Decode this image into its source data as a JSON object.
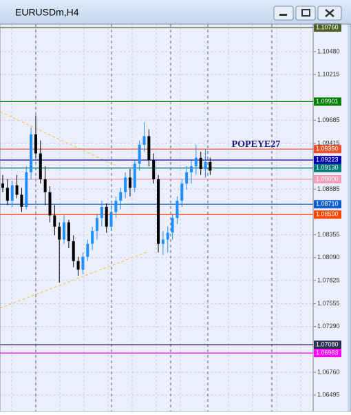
{
  "chart_data": {
    "type": "candlestick",
    "title": "EURUSDm,H4",
    "annotation": "POPEYE27",
    "bull_color": "#1e90ff",
    "bear_color": "#000000",
    "open": [
      1.0895,
      1.089,
      1.0875,
      1.0893,
      1.0882,
      1.0868,
      1.0908,
      1.0952,
      1.093,
      1.09,
      1.0885,
      1.0858,
      1.0845,
      1.083,
      1.085,
      1.0828,
      1.0805,
      1.0795,
      1.081,
      1.0825,
      1.084,
      1.0855,
      1.0868,
      1.0845,
      1.0862,
      1.0875,
      1.0885,
      1.0902,
      1.089,
      1.0918,
      1.094,
      1.095,
      1.0922,
      1.09,
      1.0825,
      1.083,
      1.0838,
      1.0855,
      1.0875,
      1.0895,
      1.0908,
      1.0915,
      1.0925,
      1.0912,
      1.092
    ],
    "high": [
      1.0905,
      1.09,
      1.0898,
      1.0905,
      1.089,
      1.0915,
      1.096,
      1.0974,
      1.0945,
      1.0915,
      1.0892,
      1.087,
      1.085,
      1.0858,
      1.0853,
      1.0835,
      1.081,
      1.0815,
      1.083,
      1.0845,
      1.086,
      1.0875,
      1.0872,
      1.087,
      1.088,
      1.089,
      1.0908,
      1.0912,
      1.0922,
      1.0945,
      1.0966,
      1.0958,
      1.093,
      1.0905,
      1.084,
      1.0845,
      1.086,
      1.088,
      1.09,
      1.0915,
      1.0922,
      1.094,
      1.0932,
      1.0935,
      1.0925
    ],
    "low": [
      1.0885,
      1.087,
      1.0868,
      1.0878,
      1.0862,
      1.0865,
      1.09,
      1.0925,
      1.0895,
      1.087,
      1.085,
      1.0835,
      1.078,
      1.0825,
      1.082,
      1.0798,
      1.0788,
      1.079,
      1.0805,
      1.0818,
      1.083,
      1.0845,
      1.0838,
      1.084,
      1.0855,
      1.0865,
      1.0878,
      1.088,
      1.0885,
      1.091,
      1.0932,
      1.0915,
      1.0895,
      1.0815,
      1.0812,
      1.0815,
      1.083,
      1.0848,
      1.0868,
      1.0888,
      1.0895,
      1.0905,
      1.0905,
      1.0902,
      1.0905
    ],
    "close": [
      1.089,
      1.0875,
      1.0893,
      1.0882,
      1.0868,
      1.0908,
      1.0952,
      1.093,
      1.09,
      1.0885,
      1.0858,
      1.0845,
      1.083,
      1.085,
      1.0828,
      1.0805,
      1.0795,
      1.081,
      1.0825,
      1.084,
      1.0855,
      1.0868,
      1.0845,
      1.0862,
      1.0875,
      1.0885,
      1.0902,
      1.089,
      1.0918,
      1.094,
      1.095,
      1.0922,
      1.09,
      1.0825,
      1.083,
      1.0838,
      1.0855,
      1.0875,
      1.0895,
      1.0908,
      1.0915,
      1.0925,
      1.0912,
      1.092,
      1.091
    ],
    "ylim": [
      1.06304,
      1.108
    ],
    "yticks": [
      {
        "value": 1.1048,
        "label": "1.10480"
      },
      {
        "value": 1.10215,
        "label": "1.10215"
      },
      {
        "value": 1.09685,
        "label": "1.09685"
      },
      {
        "value": 1.09415,
        "label": "1.09415"
      },
      {
        "value": 1.08885,
        "label": "1.08885"
      },
      {
        "value": 1.08355,
        "label": "1.08355"
      },
      {
        "value": 1.0809,
        "label": "1.08090"
      },
      {
        "value": 1.07825,
        "label": "1.07825"
      },
      {
        "value": 1.07555,
        "label": "1.07555"
      },
      {
        "value": 1.0729,
        "label": "1.07290"
      },
      {
        "value": 1.0676,
        "label": "1.06760"
      },
      {
        "value": 1.06495,
        "label": "1.06495"
      }
    ],
    "grid": true,
    "levels": [
      {
        "value": 1.1076,
        "label": "1.10760",
        "color": "#4f6228"
      },
      {
        "value": 1.09901,
        "label": "1.09901",
        "color": "#008000"
      },
      {
        "value": 1.0935,
        "label": "1.09350",
        "color": "#e8502a"
      },
      {
        "value": 1.09223,
        "label": "1.09223",
        "color": "#0000b0"
      },
      {
        "value": 1.0913,
        "label": "1.09130",
        "color": "#007878"
      },
      {
        "value": 1.09,
        "label": "1.09000",
        "color": "#f0a0b8"
      },
      {
        "value": 1.0871,
        "label": "1.08710",
        "color": "#1060d0"
      },
      {
        "value": 1.0859,
        "label": "1.08590",
        "color": "#ff4500"
      },
      {
        "value": 1.0708,
        "label": "1.07080",
        "color": "#303050"
      },
      {
        "value": 1.06983,
        "label": "1.06983",
        "color": "#ff00ff"
      }
    ]
  }
}
